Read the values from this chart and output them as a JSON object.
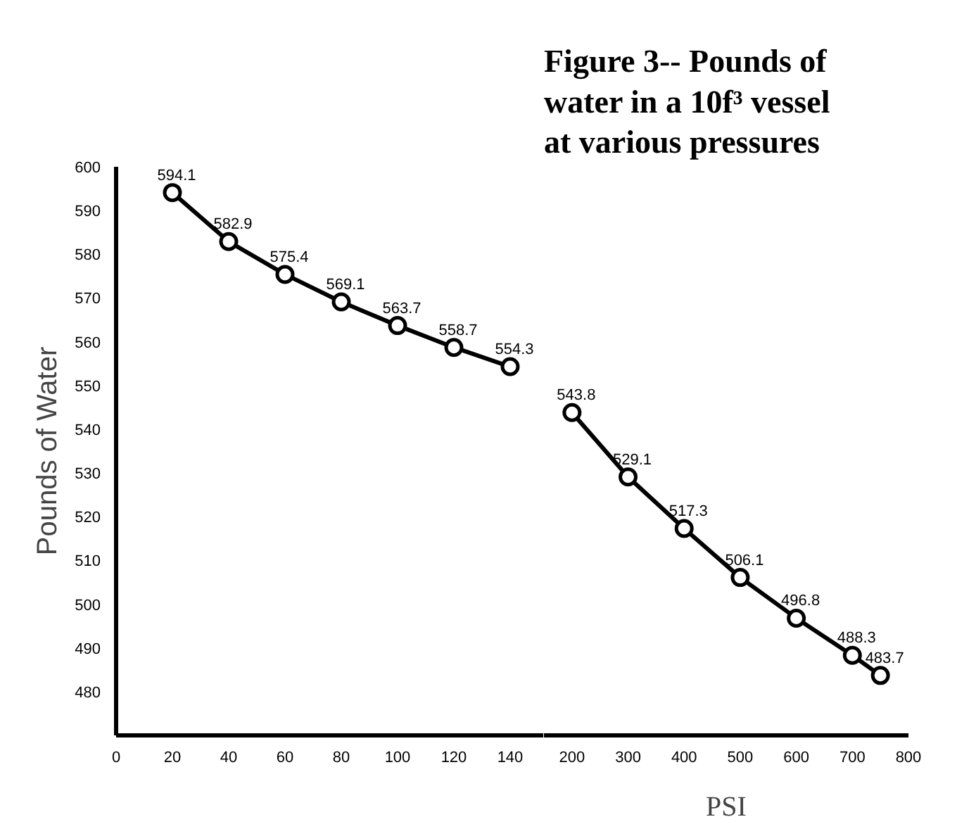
{
  "chart_data": [
    {
      "type": "line",
      "ylabel": "Pounds of Water",
      "x": [
        20,
        40,
        60,
        80,
        100,
        120,
        140
      ],
      "values": [
        594.1,
        582.9,
        575.4,
        569.1,
        563.7,
        558.7,
        554.3
      ],
      "color": "#000000",
      "xlim": [
        0,
        152
      ],
      "xticks": [
        0,
        20,
        40,
        60,
        80,
        100,
        120,
        140
      ],
      "ylim": [
        470,
        600
      ],
      "yticks": [
        480,
        490,
        500,
        510,
        520,
        530,
        540,
        550,
        560,
        570,
        580,
        590,
        600
      ],
      "data_labels": true,
      "marker": "circle",
      "grid": false
    },
    {
      "type": "line",
      "title": "Figure 3-- Pounds of water in a 10f³ vessel at various pressures",
      "xlabel": "PSI",
      "x": [
        200,
        300,
        400,
        500,
        600,
        700,
        750
      ],
      "values": [
        543.8,
        529.1,
        517.3,
        506.1,
        496.8,
        488.3,
        483.7
      ],
      "color": "#000000",
      "xlim": [
        150,
        800
      ],
      "xticks": [
        200,
        300,
        400,
        500,
        600,
        700,
        800
      ],
      "ylim": [
        470,
        600
      ],
      "tick_labels": "x",
      "data_labels": true,
      "marker": "circle",
      "grid": false
    }
  ]
}
